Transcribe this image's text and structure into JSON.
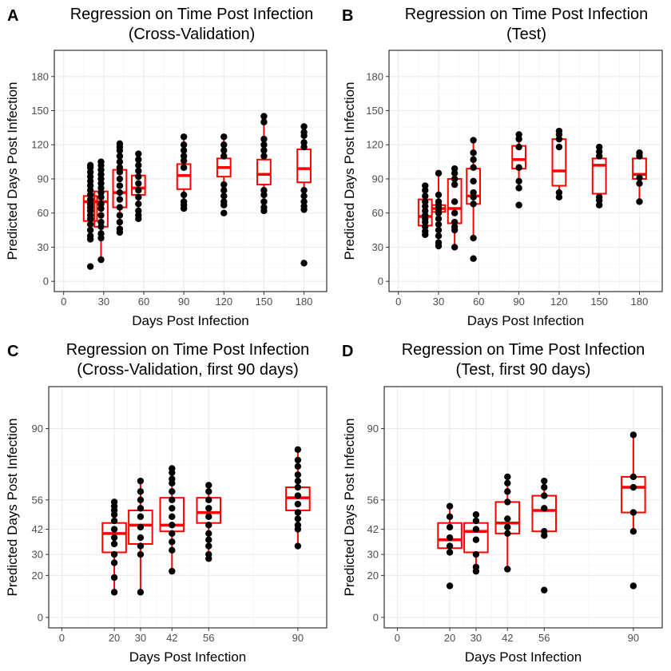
{
  "chart_data": [
    {
      "panel": "A",
      "type": "box",
      "title": [
        "Regression on Time Post Infection",
        "(Cross-Validation)"
      ],
      "xlabel": "Days Post Infection",
      "ylabel": "Predicted Days Post Infection",
      "xlim": [
        -7,
        197
      ],
      "ylim": [
        -9,
        203
      ],
      "xticks": [
        0,
        30,
        60,
        90,
        120,
        150,
        180
      ],
      "yticks": [
        0,
        30,
        60,
        90,
        120,
        150,
        180
      ],
      "box_color": "#ff0000",
      "box_width": 10,
      "boxes": [
        {
          "x": 20,
          "min": 37,
          "q1": 53,
          "median": 70,
          "q3": 75,
          "max": 102
        },
        {
          "x": 28,
          "min": 20,
          "q1": 48,
          "median": 70,
          "q3": 79,
          "max": 105
        },
        {
          "x": 42,
          "min": 43,
          "q1": 65,
          "median": 78,
          "q3": 98,
          "max": 121
        },
        {
          "x": 56,
          "min": 55,
          "q1": 76,
          "median": 82,
          "q3": 93,
          "max": 112
        },
        {
          "x": 90,
          "min": 64,
          "q1": 81,
          "median": 93,
          "q3": 103,
          "max": 127
        },
        {
          "x": 120,
          "min": 67,
          "q1": 92,
          "median": 100,
          "q3": 108,
          "max": 127
        },
        {
          "x": 150,
          "min": 62,
          "q1": 85,
          "median": 94,
          "q3": 107,
          "max": 140
        },
        {
          "x": 180,
          "min": 63,
          "q1": 87,
          "median": 99,
          "q3": 116,
          "max": 136
        }
      ],
      "points": [
        {
          "x": 20,
          "y": [
            13,
            37,
            40,
            45,
            50,
            55,
            58,
            62,
            65,
            68,
            72,
            76,
            80,
            84,
            88,
            92,
            96,
            100,
            102
          ]
        },
        {
          "x": 28,
          "y": [
            19,
            38,
            42,
            48,
            52,
            58,
            64,
            68,
            74,
            78,
            82,
            86,
            90,
            94,
            98,
            102,
            105
          ]
        },
        {
          "x": 42,
          "y": [
            43,
            46,
            52,
            58,
            65,
            72,
            78,
            84,
            90,
            96,
            100,
            105,
            110,
            115,
            118,
            121
          ]
        },
        {
          "x": 56,
          "y": [
            55,
            58,
            62,
            68,
            74,
            80,
            86,
            92,
            97,
            102,
            107,
            112
          ]
        },
        {
          "x": 90,
          "y": [
            64,
            67,
            70,
            76,
            100,
            106,
            110,
            115,
            120,
            127
          ]
        },
        {
          "x": 120,
          "y": [
            60,
            67,
            70,
            75,
            80,
            85,
            110,
            115,
            120,
            127
          ]
        },
        {
          "x": 150,
          "y": [
            62,
            65,
            70,
            76,
            80,
            110,
            115,
            120,
            125,
            140,
            145
          ]
        },
        {
          "x": 180,
          "y": [
            16,
            63,
            66,
            70,
            75,
            80,
            118,
            122,
            128,
            131,
            136
          ]
        }
      ]
    },
    {
      "panel": "B",
      "type": "box",
      "title": [
        "Regression on Time Post Infection",
        "(Test)"
      ],
      "xlabel": "Days Post Infection",
      "ylabel": "Predicted Days Post Infection",
      "xlim": [
        -7,
        197
      ],
      "ylim": [
        -9,
        203
      ],
      "xticks": [
        0,
        30,
        60,
        90,
        120,
        150,
        180
      ],
      "yticks": [
        0,
        30,
        60,
        90,
        120,
        150,
        180
      ],
      "box_color": "#ff0000",
      "box_width": 10,
      "boxes": [
        {
          "x": 20,
          "min": 41,
          "q1": 49,
          "median": 57,
          "q3": 72,
          "max": 84
        },
        {
          "x": 30,
          "min": 31,
          "q1": 61,
          "median": 64,
          "q3": 67,
          "max": 95
        },
        {
          "x": 42,
          "min": 30,
          "q1": 51,
          "median": 64,
          "q3": 90,
          "max": 99
        },
        {
          "x": 56,
          "min": 38,
          "q1": 68,
          "median": 75,
          "q3": 99,
          "max": 124
        },
        {
          "x": 90,
          "min": 82,
          "q1": 99,
          "median": 107,
          "q3": 119,
          "max": 129
        },
        {
          "x": 120,
          "min": 74,
          "q1": 84,
          "median": 97,
          "q3": 125,
          "max": 132
        },
        {
          "x": 150,
          "min": 68,
          "q1": 77,
          "median": 102,
          "q3": 108,
          "max": 118
        },
        {
          "x": 180,
          "min": 70,
          "q1": 90,
          "median": 94,
          "q3": 108,
          "max": 113
        }
      ],
      "points": [
        {
          "x": 20,
          "y": [
            41,
            44,
            48,
            52,
            55,
            58,
            62,
            66,
            70,
            75,
            80,
            84
          ]
        },
        {
          "x": 30,
          "y": [
            31,
            34,
            40,
            45,
            50,
            55,
            60,
            63,
            65,
            67,
            70,
            76,
            95
          ]
        },
        {
          "x": 42,
          "y": [
            30,
            45,
            48,
            52,
            60,
            70,
            85,
            90,
            95,
            99
          ]
        },
        {
          "x": 56,
          "y": [
            20,
            38,
            68,
            74,
            78,
            88,
            100,
            107,
            113,
            124
          ]
        },
        {
          "x": 90,
          "y": [
            67,
            82,
            88,
            100,
            118,
            125,
            129
          ]
        },
        {
          "x": 120,
          "y": [
            74,
            78,
            118,
            125,
            129,
            132
          ]
        },
        {
          "x": 150,
          "y": [
            67,
            71,
            74,
            110,
            114,
            118
          ]
        },
        {
          "x": 180,
          "y": [
            70,
            86,
            91,
            110,
            113
          ]
        }
      ]
    },
    {
      "panel": "C",
      "type": "box",
      "title": [
        "Regression on Time Post Infection",
        "(Cross-Validation, first 90 days)"
      ],
      "xlabel": "Days Post Infection",
      "ylabel": "Predicted Days Post Infection",
      "xlim": [
        -5,
        101
      ],
      "ylim": [
        -5,
        110
      ],
      "xticks": [
        0,
        20,
        30,
        42,
        56,
        90
      ],
      "yticks": [
        0,
        20,
        30,
        42,
        56,
        90
      ],
      "box_color": "#ff0000",
      "box_width": 9,
      "boxes": [
        {
          "x": 20,
          "min": 12,
          "q1": 31,
          "median": 40,
          "q3": 45,
          "max": 55
        },
        {
          "x": 30,
          "min": 12,
          "q1": 35,
          "median": 44,
          "q3": 51,
          "max": 65
        },
        {
          "x": 42,
          "min": 22,
          "q1": 41,
          "median": 44,
          "q3": 57,
          "max": 71
        },
        {
          "x": 56,
          "min": 28,
          "q1": 45,
          "median": 50,
          "q3": 57,
          "max": 63
        },
        {
          "x": 90,
          "min": 34,
          "q1": 51,
          "median": 57,
          "q3": 62,
          "max": 80
        }
      ],
      "points": [
        {
          "x": 20,
          "y": [
            12,
            19,
            26,
            30,
            35,
            38,
            42,
            46,
            49,
            51,
            53,
            55
          ]
        },
        {
          "x": 30,
          "y": [
            12,
            30,
            34,
            38,
            43,
            48,
            52,
            56,
            60,
            65
          ]
        },
        {
          "x": 42,
          "y": [
            22,
            32,
            36,
            40,
            44,
            48,
            52,
            56,
            60,
            64,
            66,
            69,
            71
          ]
        },
        {
          "x": 56,
          "y": [
            28,
            30,
            34,
            37,
            40,
            44,
            48,
            52,
            56,
            60,
            63
          ]
        },
        {
          "x": 90,
          "y": [
            34,
            42,
            44,
            47,
            50,
            54,
            58,
            62,
            65,
            68,
            72,
            75,
            80
          ]
        }
      ]
    },
    {
      "panel": "D",
      "type": "box",
      "title": [
        "Regression on Time Post Infection",
        "(Test, first 90 days)"
      ],
      "xlabel": "Days Post Infection",
      "ylabel": "Predicted Days Post Infection",
      "xlim": [
        -5,
        101
      ],
      "ylim": [
        -5,
        110
      ],
      "xticks": [
        0,
        20,
        30,
        42,
        56,
        90
      ],
      "yticks": [
        0,
        20,
        30,
        42,
        56,
        90
      ],
      "box_color": "#ff0000",
      "box_width": 9,
      "boxes": [
        {
          "x": 20,
          "min": 31,
          "q1": 33,
          "median": 37,
          "q3": 45,
          "max": 53
        },
        {
          "x": 30,
          "min": 22,
          "q1": 31,
          "median": 41,
          "q3": 45,
          "max": 49
        },
        {
          "x": 42,
          "min": 23,
          "q1": 40,
          "median": 45,
          "q3": 55,
          "max": 67
        },
        {
          "x": 56,
          "min": 39,
          "q1": 41,
          "median": 51,
          "q3": 58,
          "max": 65
        },
        {
          "x": 90,
          "min": 41,
          "q1": 50,
          "median": 62,
          "q3": 67,
          "max": 87
        }
      ],
      "points": [
        {
          "x": 20,
          "y": [
            15,
            31,
            34,
            38,
            43,
            48,
            53
          ]
        },
        {
          "x": 30,
          "y": [
            22,
            24,
            30,
            37,
            42,
            46,
            49
          ]
        },
        {
          "x": 42,
          "y": [
            23,
            40,
            43,
            47,
            55,
            60,
            64,
            67
          ]
        },
        {
          "x": 56,
          "y": [
            13,
            39,
            41,
            52,
            58,
            62,
            65
          ]
        },
        {
          "x": 90,
          "y": [
            15,
            41,
            50,
            62,
            67,
            87
          ]
        }
      ]
    }
  ]
}
